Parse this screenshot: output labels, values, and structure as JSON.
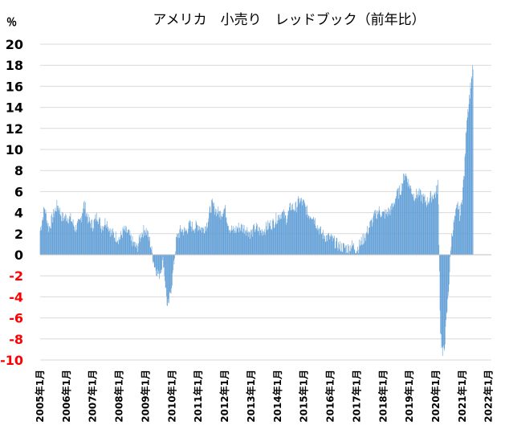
{
  "chart_data": {
    "type": "bar",
    "title": "アメリカ　小売り　レッドブック（前年比）",
    "unit_label": "％",
    "ylim": [
      -10,
      20
    ],
    "y_ticks": [
      20,
      18,
      16,
      14,
      12,
      10,
      8,
      6,
      4,
      2,
      0,
      -2,
      -4,
      -6,
      -8,
      -10
    ],
    "negative_tick_color": "#ff0000",
    "positive_tick_color": "#000000",
    "grid": "horizontal",
    "bar_color": "#5b9bd5",
    "x_tick_labels": [
      "2005年1月",
      "2006年1月",
      "2007年1月",
      "2008年1月",
      "2009年1月",
      "2010年1月",
      "2011年1月",
      "2012年1月",
      "2013年1月",
      "2014年1月",
      "2015年1月",
      "2016年1月",
      "2017年1月",
      "2018年1月",
      "2019年1月",
      "2020年1月",
      "2021年1月",
      "2022年1月"
    ],
    "x_start": "2005年1月",
    "x_end": "2022年1月",
    "frequency": "weekly",
    "anchors": [
      [
        "2005-01",
        2.3
      ],
      [
        "2005-03",
        4.5
      ],
      [
        "2005-05",
        2.5
      ],
      [
        "2005-07",
        3.8
      ],
      [
        "2005-09",
        4.8
      ],
      [
        "2005-11",
        3.5
      ],
      [
        "2006-01",
        3.6
      ],
      [
        "2006-03",
        3.4
      ],
      [
        "2006-05",
        2.5
      ],
      [
        "2006-07",
        3.0
      ],
      [
        "2006-09",
        4.9
      ],
      [
        "2006-11",
        3.2
      ],
      [
        "2007-01",
        2.8
      ],
      [
        "2007-03",
        3.8
      ],
      [
        "2007-05",
        2.6
      ],
      [
        "2007-07",
        3.3
      ],
      [
        "2007-09",
        2.2
      ],
      [
        "2007-11",
        1.8
      ],
      [
        "2008-01",
        1.5
      ],
      [
        "2008-03",
        2.3
      ],
      [
        "2008-05",
        2.1
      ],
      [
        "2008-07",
        1.2
      ],
      [
        "2008-09",
        0.6
      ],
      [
        "2008-11",
        2.0
      ],
      [
        "2009-01",
        2.5
      ],
      [
        "2009-03",
        1.2
      ],
      [
        "2009-05",
        -1.0
      ],
      [
        "2009-07",
        -2.0
      ],
      [
        "2009-09",
        -0.5
      ],
      [
        "2009-11",
        -5.2
      ],
      [
        "2009-12",
        -4.0
      ],
      [
        "2010-01",
        -2.5
      ],
      [
        "2010-03",
        1.5
      ],
      [
        "2010-05",
        2.4
      ],
      [
        "2010-07",
        2.2
      ],
      [
        "2010-09",
        2.8
      ],
      [
        "2010-11",
        2.6
      ],
      [
        "2011-01",
        2.8
      ],
      [
        "2011-03",
        2.4
      ],
      [
        "2011-05",
        3.0
      ],
      [
        "2011-07",
        4.8
      ],
      [
        "2011-09",
        4.2
      ],
      [
        "2011-11",
        3.9
      ],
      [
        "2012-01",
        4.4
      ],
      [
        "2012-03",
        2.6
      ],
      [
        "2012-05",
        2.2
      ],
      [
        "2012-07",
        2.6
      ],
      [
        "2012-09",
        2.6
      ],
      [
        "2012-11",
        2.4
      ],
      [
        "2013-01",
        2.0
      ],
      [
        "2013-03",
        2.6
      ],
      [
        "2013-05",
        2.2
      ],
      [
        "2013-07",
        2.4
      ],
      [
        "2013-09",
        2.8
      ],
      [
        "2013-11",
        3.0
      ],
      [
        "2014-01",
        3.6
      ],
      [
        "2014-03",
        4.0
      ],
      [
        "2014-05",
        3.4
      ],
      [
        "2014-07",
        4.6
      ],
      [
        "2014-09",
        4.4
      ],
      [
        "2014-11",
        5.2
      ],
      [
        "2015-01",
        4.8
      ],
      [
        "2015-03",
        3.8
      ],
      [
        "2015-05",
        3.8
      ],
      [
        "2015-07",
        2.8
      ],
      [
        "2015-09",
        2.0
      ],
      [
        "2015-11",
        1.7
      ],
      [
        "2016-01",
        1.6
      ],
      [
        "2016-03",
        1.2
      ],
      [
        "2016-05",
        0.8
      ],
      [
        "2016-07",
        0.7
      ],
      [
        "2016-09",
        0.6
      ],
      [
        "2016-11",
        0.9
      ],
      [
        "2017-01",
        0.5
      ],
      [
        "2017-03",
        1.2
      ],
      [
        "2017-05",
        1.8
      ],
      [
        "2017-07",
        2.8
      ],
      [
        "2017-09",
        3.6
      ],
      [
        "2017-11",
        4.2
      ],
      [
        "2018-01",
        3.8
      ],
      [
        "2018-03",
        4.0
      ],
      [
        "2018-05",
        4.4
      ],
      [
        "2018-07",
        5.6
      ],
      [
        "2018-09",
        6.2
      ],
      [
        "2018-11",
        7.8
      ],
      [
        "2019-01",
        6.6
      ],
      [
        "2019-03",
        5.6
      ],
      [
        "2019-05",
        5.8
      ],
      [
        "2019-07",
        5.4
      ],
      [
        "2019-09",
        5.0
      ],
      [
        "2019-11",
        5.6
      ],
      [
        "2020-01",
        5.8
      ],
      [
        "2020-02",
        6.8
      ],
      [
        "2020-03",
        -7.0
      ],
      [
        "2020-04",
        -9.6
      ],
      [
        "2020-05",
        -8.5
      ],
      [
        "2020-06",
        -5.5
      ],
      [
        "2020-07",
        -2.5
      ],
      [
        "2020-08",
        1.5
      ],
      [
        "2020-09",
        2.8
      ],
      [
        "2020-10",
        3.8
      ],
      [
        "2020-11",
        4.8
      ],
      [
        "2020-12",
        3.6
      ],
      [
        "2021-01",
        5.8
      ],
      [
        "2021-02",
        8.0
      ],
      [
        "2021-03",
        13.0
      ],
      [
        "2021-04",
        14.5
      ],
      [
        "2021-05",
        16.5
      ],
      [
        "2021-06",
        18.0
      ]
    ]
  }
}
